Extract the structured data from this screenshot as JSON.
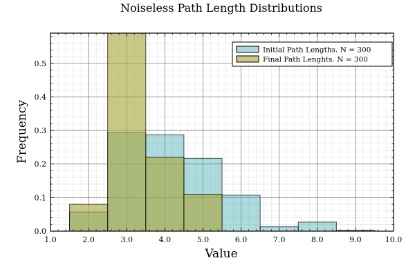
{
  "chart_data": {
    "type": "bar",
    "title": "Noiseless Path Length Distributions",
    "xlabel": "Value",
    "ylabel": "Frequency",
    "xlim": [
      1.0,
      10.0
    ],
    "ylim": [
      0,
      0.59
    ],
    "x_ticks": [
      "1.0",
      "2.0",
      "3.0",
      "4.0",
      "5.0",
      "6.0",
      "7.0",
      "8.0",
      "9.0",
      "10.0"
    ],
    "y_ticks": [
      "0.0",
      "0.1",
      "0.2",
      "0.3",
      "0.4",
      "0.5"
    ],
    "grid": true,
    "legend_position": "top-right",
    "bin_edges": [
      1.5,
      2.5,
      3.5,
      4.5,
      5.5,
      6.5,
      7.5,
      8.5,
      9.5
    ],
    "series": [
      {
        "name": "Initial Path Lengths. N = 300",
        "color": "#3fa9b0",
        "values": [
          0.057,
          0.293,
          0.287,
          0.217,
          0.107,
          0.013,
          0.027,
          0.003
        ]
      },
      {
        "name": "Final Path Lenghts. N = 300",
        "color": "#a9a63a",
        "values": [
          0.08,
          0.59,
          0.22,
          0.11,
          0.0,
          0.0,
          0.0,
          0.0
        ]
      }
    ]
  }
}
